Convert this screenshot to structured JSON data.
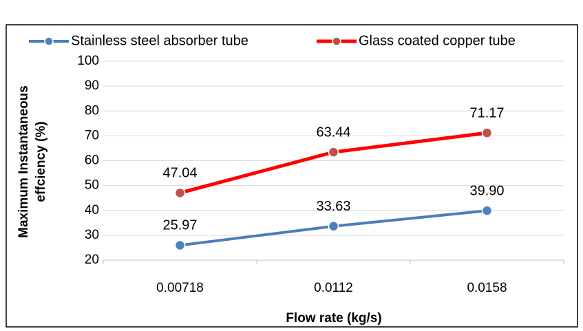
{
  "chart_data": {
    "type": "line",
    "xlabel": "Flow rate (kg/s)",
    "ylabel": [
      "Maximum Instantaneous",
      "effciency (%)"
    ],
    "categories": [
      "0.00718",
      "0.0112",
      "0.0158"
    ],
    "series": [
      {
        "name": "Stainless steel absorber tube",
        "color": "#4a7ebb",
        "marker_color": "#4f81bd",
        "values": [
          25.97,
          33.63,
          39.9
        ],
        "value_labels": [
          "25.97",
          "33.63",
          "39.90"
        ]
      },
      {
        "name": "Glass coated copper tube",
        "color": "#ff0000",
        "marker_color": "#c0504d",
        "values": [
          47.04,
          63.44,
          71.17
        ],
        "value_labels": [
          "47.04",
          "63.44",
          "71.17"
        ]
      }
    ],
    "ylim": [
      20,
      100
    ],
    "yticks": [
      20,
      30,
      40,
      50,
      60,
      70,
      80,
      90,
      100
    ],
    "grid": true,
    "legend": "top"
  }
}
